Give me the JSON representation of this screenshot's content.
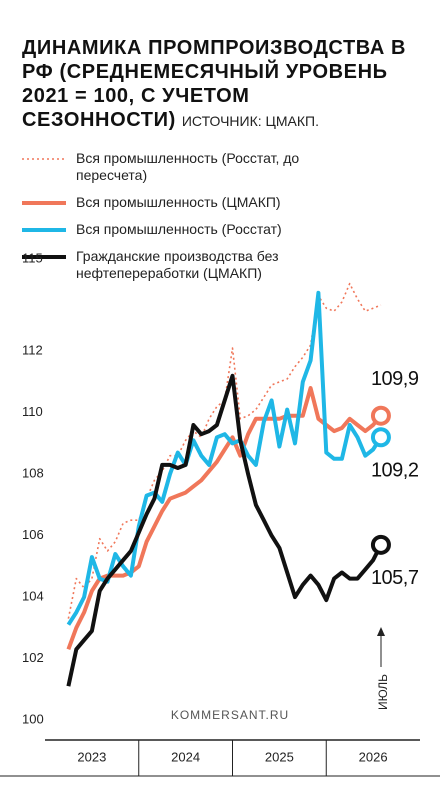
{
  "chart_data": {
    "type": "line",
    "title": "ДИНАМИКА ПРОМПРОИЗВОДСТВА В РФ (СРЕДНЕМЕСЯЧНЫЙ УРОВЕНЬ 2021 = 100, С УЧЕТОМ СЕЗОННОСТИ)",
    "source": "ИСТОЧНИК: ЦМАКП.",
    "watermark": "KOMMERSANT.RU",
    "annotation": "ИЮЛЬ",
    "x": [
      3,
      4,
      5,
      6,
      7,
      8,
      9,
      10,
      11,
      12,
      13,
      14,
      15,
      16,
      17,
      18,
      19,
      20,
      21,
      22,
      23,
      24,
      25,
      26,
      27,
      28,
      29,
      30,
      31,
      32,
      33,
      34,
      35,
      36,
      37,
      38,
      39,
      40,
      41,
      42,
      43
    ],
    "xlim": [
      0,
      48
    ],
    "xticks": [
      {
        "value": 6,
        "label": "2023"
      },
      {
        "value": 18,
        "label": "2024"
      },
      {
        "value": 30,
        "label": "2025"
      },
      {
        "value": 42,
        "label": "2026"
      }
    ],
    "ylim": [
      100,
      115
    ],
    "yticks": [
      100,
      102,
      104,
      106,
      108,
      110,
      112,
      115
    ],
    "series": [
      {
        "name": "Вся промышленность (Росстат, до пересчета)",
        "color": "#f0775a",
        "dash": "dotted",
        "end_marker": false,
        "values": [
          103.3,
          104.6,
          104.3,
          104.6,
          105.9,
          105.5,
          105.8,
          106.4,
          106.5,
          106.5,
          107.2,
          107.8,
          108.1,
          108.6,
          108.6,
          109.1,
          109.4,
          109.2,
          109.8,
          110.2,
          110.4,
          112.1,
          109.8,
          109.9,
          110.1,
          110.5,
          110.9,
          111.0,
          111.1,
          111.5,
          111.8,
          112.2,
          113.8,
          113.4,
          113.3,
          113.6,
          114.2,
          113.7,
          113.3,
          113.4,
          113.5
        ]
      },
      {
        "name": "Вся промышленность (ЦМАКП)",
        "color": "#f0775a",
        "dash": "solid",
        "end_marker": true,
        "values": [
          102.3,
          103.0,
          103.5,
          104.2,
          104.6,
          104.7,
          104.7,
          104.7,
          104.8,
          105.0,
          105.8,
          106.3,
          106.8,
          107.2,
          107.3,
          107.4,
          107.6,
          107.8,
          108.1,
          108.4,
          108.8,
          109.2,
          108.6,
          109.3,
          109.8,
          109.8,
          109.8,
          109.8,
          109.9,
          109.9,
          109.9,
          110.8,
          109.8,
          109.6,
          109.4,
          109.5,
          109.8,
          109.6,
          109.4,
          109.6,
          109.9
        ],
        "value_labels": [
          null,
          null,
          null,
          null,
          null,
          null,
          null,
          null,
          null,
          null,
          null,
          null,
          null,
          null,
          null,
          null,
          null,
          null,
          null,
          null,
          null,
          null,
          null,
          null,
          null,
          null,
          null,
          null,
          null,
          null,
          null,
          null,
          null,
          null,
          null,
          null,
          null,
          null,
          null,
          null,
          "109,9"
        ]
      },
      {
        "name": "Вся промышленность (Росстат)",
        "color": "#1fb7e6",
        "dash": "solid",
        "end_marker": true,
        "values": [
          103.1,
          103.5,
          104.0,
          105.3,
          104.6,
          104.5,
          105.4,
          105.0,
          104.7,
          106.3,
          107.3,
          107.4,
          107.1,
          108.0,
          108.7,
          108.3,
          109.1,
          108.6,
          108.3,
          109.2,
          109.3,
          109.0,
          109.1,
          108.6,
          108.3,
          109.7,
          110.4,
          108.9,
          110.1,
          109.0,
          111.0,
          111.7,
          113.9,
          108.7,
          108.5,
          108.5,
          109.6,
          109.2,
          108.6,
          108.8,
          109.2
        ],
        "value_labels": [
          null,
          null,
          null,
          null,
          null,
          null,
          null,
          null,
          null,
          null,
          null,
          null,
          null,
          null,
          null,
          null,
          null,
          null,
          null,
          null,
          null,
          null,
          null,
          null,
          null,
          null,
          null,
          null,
          null,
          null,
          null,
          null,
          null,
          null,
          null,
          null,
          null,
          null,
          null,
          null,
          "109,2"
        ]
      },
      {
        "name": "Гражданские производства без нефтепереработки (ЦМАКП)",
        "color": "#111111",
        "dash": "solid",
        "end_marker": true,
        "values": [
          101.1,
          102.3,
          102.6,
          102.9,
          104.2,
          104.6,
          104.9,
          105.2,
          105.5,
          106.1,
          106.7,
          107.2,
          108.3,
          108.3,
          108.2,
          108.3,
          109.6,
          109.3,
          109.4,
          109.6,
          110.4,
          111.2,
          109.1,
          108.0,
          107.0,
          106.5,
          106.0,
          105.6,
          104.8,
          104.0,
          104.4,
          104.7,
          104.4,
          103.9,
          104.6,
          104.8,
          104.6,
          104.6,
          104.9,
          105.2,
          105.7
        ],
        "value_labels": [
          null,
          null,
          null,
          null,
          null,
          null,
          null,
          null,
          null,
          null,
          null,
          null,
          null,
          null,
          null,
          null,
          null,
          null,
          null,
          null,
          null,
          null,
          null,
          null,
          null,
          null,
          null,
          null,
          null,
          null,
          null,
          null,
          null,
          null,
          null,
          null,
          null,
          null,
          null,
          null,
          "105,7"
        ]
      }
    ]
  }
}
